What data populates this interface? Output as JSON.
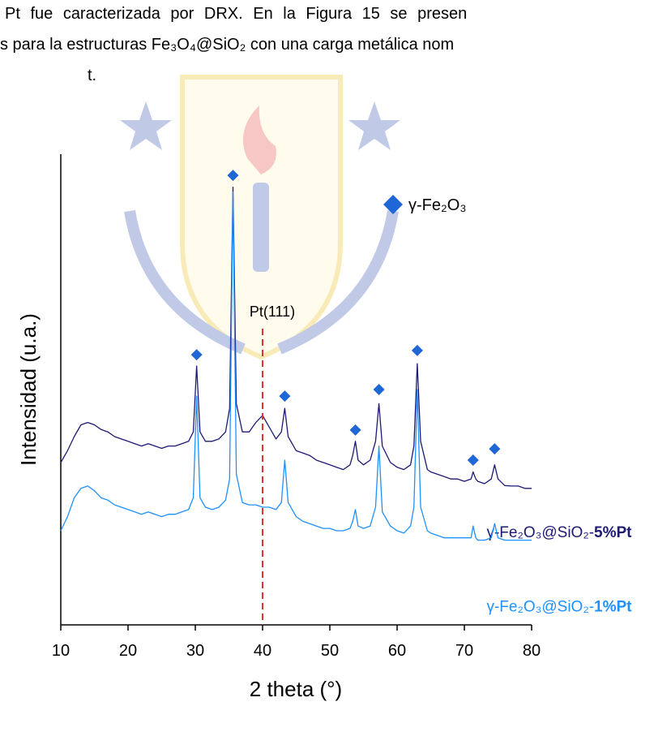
{
  "text": {
    "lines": [
      "Pt fue caracterizada por DRX. En la Figura 15 se presen",
      "s para la estructuras Fe₃O₄@SiO₂ con una carga metálica nom",
      "t."
    ]
  },
  "chart_data": {
    "type": "line",
    "xlabel": "2 theta (°)",
    "ylabel": "Intensidad (u.a.)",
    "xlim": [
      10,
      80
    ],
    "xticks": [
      10,
      20,
      30,
      40,
      50,
      60,
      70,
      80
    ],
    "ylim": [
      0,
      100
    ],
    "x": [
      10,
      11,
      12,
      13,
      14,
      15,
      16,
      17,
      18,
      19,
      20,
      21,
      22,
      23,
      24,
      25,
      26,
      27,
      28,
      29,
      29.7,
      30.2,
      30.7,
      31.5,
      32.5,
      33.5,
      34.5,
      35.1,
      35.6,
      36.1,
      37,
      38,
      39,
      40,
      41,
      42,
      42.8,
      43.3,
      43.8,
      45,
      46,
      47,
      48,
      49,
      50,
      51,
      52,
      53,
      53.4,
      53.8,
      54.2,
      55,
      56,
      56.8,
      57.3,
      57.8,
      59,
      60,
      61,
      62,
      62.5,
      63,
      63.5,
      64.5,
      65,
      66,
      67,
      68,
      69,
      70,
      71,
      71.3,
      71.7,
      72,
      73,
      74,
      74.5,
      75,
      76,
      77,
      78,
      79,
      80
    ],
    "series": [
      {
        "name": "γ-Fe₂O₃@SiO₂-5%Pt",
        "color": "#1c1a72",
        "values": [
          34.5,
          37,
          40,
          42.5,
          43,
          42.5,
          41.5,
          41,
          40,
          39.5,
          39,
          38.5,
          38,
          38.5,
          38,
          37.5,
          38,
          38,
          38.5,
          39,
          41,
          55,
          41,
          39,
          39,
          39.5,
          41,
          46,
          93,
          47,
          41,
          41,
          43,
          44.5,
          42,
          39.5,
          41,
          46,
          40,
          37,
          36.5,
          36,
          35,
          34.5,
          34,
          33.5,
          33,
          34,
          36,
          39,
          35,
          34,
          35,
          39,
          47,
          38,
          34.5,
          33.5,
          33,
          34,
          38,
          55.5,
          39,
          33,
          32.5,
          32,
          31.5,
          31,
          31,
          30.5,
          31,
          32.5,
          31,
          30.5,
          30,
          31,
          34,
          31,
          29.6,
          29.5,
          29.5,
          29,
          29
        ]
      },
      {
        "name": "γ-Fe₂O₃@SiO₂-1%Pt",
        "color": "#1e90ff",
        "values": [
          20,
          23,
          27,
          29,
          29.5,
          28.5,
          27,
          26.5,
          25.5,
          25,
          24.5,
          24,
          23.5,
          24,
          23.5,
          23,
          23.5,
          23.5,
          24,
          24.5,
          27,
          48.6,
          27,
          25,
          24.5,
          25,
          26.5,
          31,
          92,
          32,
          26,
          25.5,
          25.5,
          25,
          25,
          24.5,
          26,
          35,
          26,
          23,
          22,
          21.5,
          21,
          20.5,
          20.5,
          20,
          20,
          20.5,
          22,
          24.5,
          21,
          20.5,
          21,
          25,
          38,
          24,
          21,
          20,
          19.5,
          21,
          25,
          50,
          25,
          20,
          19.5,
          19,
          18.5,
          18.5,
          18.5,
          18.5,
          18.5,
          21,
          18.5,
          18,
          18,
          18.5,
          21.5,
          18.5,
          18,
          18,
          18,
          18,
          18
        ]
      }
    ],
    "markers": {
      "name": "γ-Fe₂O₃",
      "color": "#1f66d6",
      "x": [
        30.2,
        35.6,
        43.3,
        53.8,
        57.3,
        63,
        71.3,
        74.5
      ],
      "y": [
        57.4,
        95.5,
        48.6,
        41.4,
        50,
        58.3,
        35,
        37.4
      ]
    },
    "annotations": [
      {
        "text": "Pt(111)",
        "x": 40,
        "color": "#e8312f"
      }
    ]
  }
}
